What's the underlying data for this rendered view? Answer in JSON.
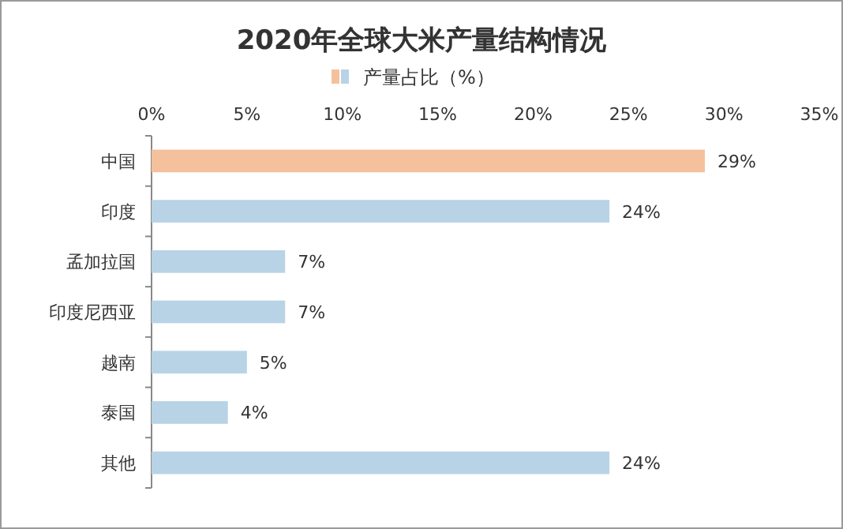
{
  "chart_data": {
    "type": "bar",
    "orientation": "horizontal",
    "title": "2020年全球大米产量结构情况",
    "categories": [
      "中国",
      "印度",
      "孟加拉国",
      "印度尼西亚",
      "越南",
      "泰国",
      "其他"
    ],
    "series": [
      {
        "name": "产量占比（%）",
        "colors": [
          "#f4c19c",
          "#b8d3e6",
          "#b8d3e6",
          "#b8d3e6",
          "#b8d3e6",
          "#b8d3e6",
          "#b8d3e6"
        ],
        "values": [
          29,
          24,
          7,
          7,
          5,
          4,
          24
        ],
        "value_labels": [
          "29%",
          "24%",
          "7%",
          "7%",
          "5%",
          "4%",
          "24%"
        ]
      }
    ],
    "xlim": [
      0,
      35
    ],
    "xticks": [
      {
        "value": 0,
        "label": "0%"
      },
      {
        "value": 5,
        "label": "5%"
      },
      {
        "value": 10,
        "label": "10%"
      },
      {
        "value": 15,
        "label": "15%"
      },
      {
        "value": 20,
        "label": "20%"
      },
      {
        "value": 25,
        "label": "25%"
      },
      {
        "value": 30,
        "label": "30%"
      },
      {
        "value": 35,
        "label": "35%"
      }
    ],
    "legend": "top",
    "grid": false
  }
}
